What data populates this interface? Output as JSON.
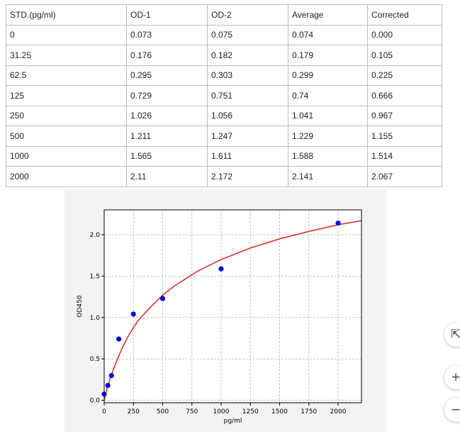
{
  "table": {
    "headers": [
      "STD.(pg/ml)",
      "OD-1",
      "OD-2",
      "Average",
      "Corrected"
    ],
    "rows": [
      [
        "0",
        "0.073",
        "0.075",
        "0.074",
        "0.000"
      ],
      [
        "31.25",
        "0.176",
        "0.182",
        "0.179",
        "0.105"
      ],
      [
        "62.5",
        "0.295",
        "0.303",
        "0.299",
        "0.225"
      ],
      [
        "125",
        "0.729",
        "0.751",
        "0.74",
        "0.666"
      ],
      [
        "250",
        "1.026",
        "1.056",
        "1.041",
        "0.967"
      ],
      [
        "500",
        "1.211",
        "1.247",
        "1.229",
        "1.155"
      ],
      [
        "1000",
        "1.565",
        "1.611",
        "1.588",
        "1.514"
      ],
      [
        "2000",
        "2.11",
        "2.172",
        "2.141",
        "2.067"
      ]
    ]
  },
  "chart_data": {
    "type": "scatter",
    "title": "",
    "xlabel": "pg/ml",
    "ylabel": "OD450",
    "xlim": [
      0,
      2200
    ],
    "ylim": [
      -0.03,
      2.3
    ],
    "xticks": [
      0,
      250,
      500,
      750,
      1000,
      1250,
      1500,
      1750,
      2000
    ],
    "yticks": [
      0.0,
      0.5,
      1.0,
      1.5,
      2.0
    ],
    "ytick_labels": [
      "0.0",
      "0.5",
      "1.0",
      "1.5",
      "2.0"
    ],
    "grid": true,
    "series": [
      {
        "kind": "points",
        "color": "#0000ee",
        "x": [
          0,
          31.25,
          62.5,
          125,
          250,
          500,
          1000,
          2000
        ],
        "y": [
          0.074,
          0.179,
          0.299,
          0.74,
          1.041,
          1.229,
          1.588,
          2.141
        ]
      },
      {
        "kind": "fit-curve",
        "color": "#d62728",
        "x": [
          0,
          25,
          50,
          75,
          100,
          150,
          200,
          250,
          300,
          400,
          500,
          600,
          800,
          1000,
          1250,
          1500,
          1750,
          2000,
          2200
        ],
        "y": [
          0.0,
          0.14,
          0.26,
          0.36,
          0.45,
          0.62,
          0.76,
          0.88,
          0.98,
          1.13,
          1.27,
          1.38,
          1.56,
          1.7,
          1.84,
          1.95,
          2.04,
          2.12,
          2.17
        ]
      }
    ]
  },
  "side_controls": {
    "top_icon": "move-icon",
    "top_glyph": "⇱",
    "zoom_in_glyph": "+",
    "zoom_out_glyph": "−"
  }
}
